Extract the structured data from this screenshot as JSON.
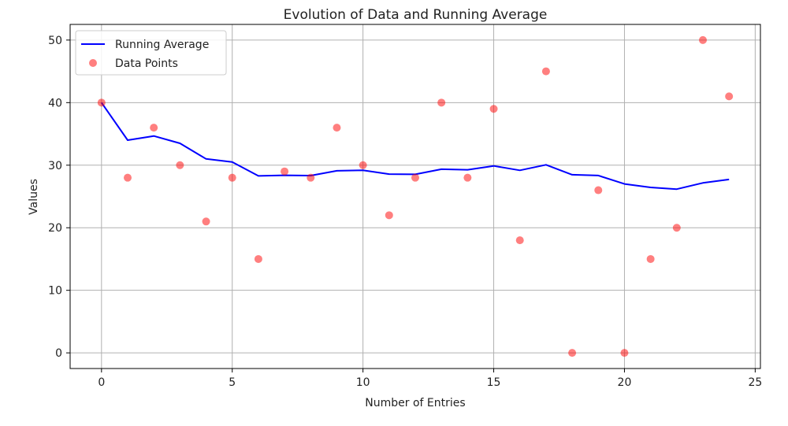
{
  "chart_data": {
    "type": "line+scatter",
    "title": "Evolution of Data and Running Average",
    "xlabel": "Number of Entries",
    "ylabel": "Values",
    "xlim": [
      -1.2,
      25.2
    ],
    "ylim": [
      -2.5,
      52.5
    ],
    "xticks": [
      0,
      5,
      10,
      15,
      20,
      25
    ],
    "yticks": [
      0,
      10,
      20,
      30,
      40,
      50
    ],
    "grid": true,
    "legend_position": "upper-left",
    "series": [
      {
        "name": "Running Average",
        "kind": "line",
        "color": "#0000ff",
        "x": [
          0,
          1,
          2,
          3,
          4,
          5,
          6,
          7,
          8,
          9,
          10,
          11,
          12,
          13,
          14,
          15,
          16,
          17,
          18,
          19,
          20,
          21,
          22,
          23,
          24
        ],
        "y": [
          40.0,
          34.0,
          34.67,
          33.5,
          31.0,
          30.5,
          28.29,
          28.38,
          28.33,
          29.1,
          29.18,
          28.58,
          28.54,
          29.36,
          29.27,
          29.88,
          29.18,
          30.06,
          28.47,
          28.35,
          27.0,
          26.45,
          26.17,
          27.17,
          27.72
        ]
      },
      {
        "name": "Data Points",
        "kind": "scatter",
        "color": "#ff0000",
        "opacity": 0.5,
        "x": [
          0,
          1,
          2,
          3,
          4,
          5,
          6,
          7,
          8,
          9,
          10,
          11,
          12,
          13,
          14,
          15,
          16,
          17,
          18,
          19,
          20,
          21,
          22,
          23,
          24
        ],
        "y": [
          40,
          28,
          36,
          30,
          21,
          28,
          15,
          29,
          28,
          36,
          30,
          22,
          28,
          40,
          28,
          39,
          18,
          45,
          0,
          26,
          0,
          15,
          20,
          50,
          41
        ]
      }
    ]
  }
}
